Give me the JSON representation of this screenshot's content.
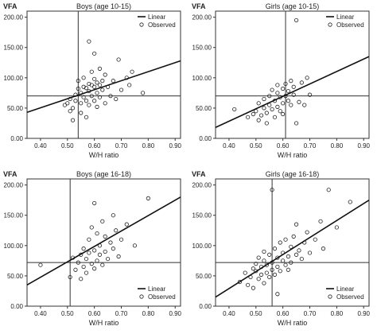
{
  "chart_data": [
    {
      "type": "scatter",
      "title": "Boys (age 10-15)",
      "ylabel": "VFA",
      "xlabel": "W/H ratio",
      "xlim": [
        0.35,
        0.92
      ],
      "ylim": [
        0,
        210
      ],
      "x_ticks": [
        "0.40",
        "0.50",
        "0.60",
        "0.70",
        "0.80",
        "0.90"
      ],
      "y_ticks": [
        "0.00",
        "50.00",
        "100.00",
        "150.00",
        "200.00"
      ],
      "legend": {
        "position": "top-right",
        "entries": [
          "Linear",
          "Observed"
        ]
      },
      "reference_lines": {
        "x": 0.54,
        "y": 70
      },
      "fit_line": {
        "x": [
          0.35,
          0.92
        ],
        "y": [
          43,
          128
        ]
      },
      "points": [
        {
          "x": 0.49,
          "y": 55
        },
        {
          "x": 0.5,
          "y": 58
        },
        {
          "x": 0.51,
          "y": 45
        },
        {
          "x": 0.51,
          "y": 65
        },
        {
          "x": 0.52,
          "y": 30
        },
        {
          "x": 0.52,
          "y": 50
        },
        {
          "x": 0.53,
          "y": 72
        },
        {
          "x": 0.53,
          "y": 62
        },
        {
          "x": 0.54,
          "y": 95
        },
        {
          "x": 0.54,
          "y": 82
        },
        {
          "x": 0.55,
          "y": 75
        },
        {
          "x": 0.55,
          "y": 58
        },
        {
          "x": 0.55,
          "y": 42
        },
        {
          "x": 0.56,
          "y": 85
        },
        {
          "x": 0.56,
          "y": 100
        },
        {
          "x": 0.56,
          "y": 68
        },
        {
          "x": 0.57,
          "y": 83
        },
        {
          "x": 0.57,
          "y": 62
        },
        {
          "x": 0.57,
          "y": 35
        },
        {
          "x": 0.58,
          "y": 160
        },
        {
          "x": 0.58,
          "y": 90
        },
        {
          "x": 0.58,
          "y": 78
        },
        {
          "x": 0.58,
          "y": 55
        },
        {
          "x": 0.59,
          "y": 110
        },
        {
          "x": 0.59,
          "y": 88
        },
        {
          "x": 0.59,
          "y": 70
        },
        {
          "x": 0.6,
          "y": 140
        },
        {
          "x": 0.6,
          "y": 98
        },
        {
          "x": 0.6,
          "y": 85
        },
        {
          "x": 0.6,
          "y": 62
        },
        {
          "x": 0.61,
          "y": 92
        },
        {
          "x": 0.61,
          "y": 75
        },
        {
          "x": 0.61,
          "y": 52
        },
        {
          "x": 0.62,
          "y": 88
        },
        {
          "x": 0.62,
          "y": 115
        },
        {
          "x": 0.62,
          "y": 68
        },
        {
          "x": 0.63,
          "y": 95
        },
        {
          "x": 0.63,
          "y": 80
        },
        {
          "x": 0.64,
          "y": 105
        },
        {
          "x": 0.64,
          "y": 58
        },
        {
          "x": 0.65,
          "y": 85
        },
        {
          "x": 0.66,
          "y": 70
        },
        {
          "x": 0.67,
          "y": 95
        },
        {
          "x": 0.68,
          "y": 65
        },
        {
          "x": 0.69,
          "y": 130
        },
        {
          "x": 0.7,
          "y": 80
        },
        {
          "x": 0.72,
          "y": 100
        },
        {
          "x": 0.73,
          "y": 88
        },
        {
          "x": 0.74,
          "y": 110
        },
        {
          "x": 0.78,
          "y": 75
        }
      ]
    },
    {
      "type": "scatter",
      "title": "Girls (age 10-15)",
      "ylabel": "VFA",
      "xlabel": "W/H ratio",
      "xlim": [
        0.35,
        0.92
      ],
      "ylim": [
        0,
        210
      ],
      "x_ticks": [
        "0.40",
        "0.50",
        "0.60",
        "0.70",
        "0.80",
        "0.90"
      ],
      "y_ticks": [
        "0.00",
        "50.00",
        "100.00",
        "150.00",
        "200.00"
      ],
      "legend": {
        "position": "top-right",
        "entries": [
          "Linear",
          "Observed"
        ]
      },
      "reference_lines": {
        "x": 0.61,
        "y": 70
      },
      "fit_line": {
        "x": [
          0.35,
          0.92
        ],
        "y": [
          18,
          135
        ]
      },
      "points": [
        {
          "x": 0.42,
          "y": 48
        },
        {
          "x": 0.47,
          "y": 35
        },
        {
          "x": 0.49,
          "y": 40
        },
        {
          "x": 0.5,
          "y": 45
        },
        {
          "x": 0.51,
          "y": 30
        },
        {
          "x": 0.51,
          "y": 58
        },
        {
          "x": 0.52,
          "y": 38
        },
        {
          "x": 0.53,
          "y": 50
        },
        {
          "x": 0.53,
          "y": 65
        },
        {
          "x": 0.54,
          "y": 42
        },
        {
          "x": 0.54,
          "y": 25
        },
        {
          "x": 0.55,
          "y": 55
        },
        {
          "x": 0.55,
          "y": 70
        },
        {
          "x": 0.56,
          "y": 48
        },
        {
          "x": 0.56,
          "y": 80
        },
        {
          "x": 0.57,
          "y": 35
        },
        {
          "x": 0.57,
          "y": 62
        },
        {
          "x": 0.58,
          "y": 52
        },
        {
          "x": 0.58,
          "y": 75
        },
        {
          "x": 0.58,
          "y": 88
        },
        {
          "x": 0.59,
          "y": 45
        },
        {
          "x": 0.59,
          "y": 68
        },
        {
          "x": 0.6,
          "y": 58
        },
        {
          "x": 0.6,
          "y": 82
        },
        {
          "x": 0.6,
          "y": 40
        },
        {
          "x": 0.61,
          "y": 90
        },
        {
          "x": 0.61,
          "y": 70
        },
        {
          "x": 0.62,
          "y": 62
        },
        {
          "x": 0.62,
          "y": 78
        },
        {
          "x": 0.63,
          "y": 55
        },
        {
          "x": 0.63,
          "y": 95
        },
        {
          "x": 0.64,
          "y": 72
        },
        {
          "x": 0.64,
          "y": 85
        },
        {
          "x": 0.65,
          "y": 25
        },
        {
          "x": 0.65,
          "y": 195
        },
        {
          "x": 0.66,
          "y": 60
        },
        {
          "x": 0.67,
          "y": 92
        },
        {
          "x": 0.68,
          "y": 55
        },
        {
          "x": 0.69,
          "y": 100
        },
        {
          "x": 0.7,
          "y": 72
        }
      ]
    },
    {
      "type": "scatter",
      "title": "Boys (age 16-18)",
      "ylabel": "VFA",
      "xlabel": "W/H ratio",
      "xlim": [
        0.35,
        0.92
      ],
      "ylim": [
        0,
        210
      ],
      "x_ticks": [
        "0.40",
        "0.50",
        "0.60",
        "0.70",
        "0.80",
        "0.90"
      ],
      "y_ticks": [
        "0.00",
        "50.00",
        "100.00",
        "150.00",
        "200.00"
      ],
      "legend": {
        "position": "bottom-right",
        "entries": [
          "Linear",
          "Observed"
        ]
      },
      "reference_lines": {
        "x": 0.51,
        "y": 72
      },
      "fit_line": {
        "x": [
          0.35,
          0.92
        ],
        "y": [
          35,
          180
        ]
      },
      "points": [
        {
          "x": 0.4,
          "y": 68
        },
        {
          "x": 0.51,
          "y": 48
        },
        {
          "x": 0.52,
          "y": 80
        },
        {
          "x": 0.53,
          "y": 60
        },
        {
          "x": 0.54,
          "y": 72
        },
        {
          "x": 0.55,
          "y": 45
        },
        {
          "x": 0.55,
          "y": 85
        },
        {
          "x": 0.56,
          "y": 65
        },
        {
          "x": 0.56,
          "y": 95
        },
        {
          "x": 0.57,
          "y": 78
        },
        {
          "x": 0.57,
          "y": 55
        },
        {
          "x": 0.58,
          "y": 88
        },
        {
          "x": 0.58,
          "y": 110
        },
        {
          "x": 0.59,
          "y": 70
        },
        {
          "x": 0.59,
          "y": 130
        },
        {
          "x": 0.6,
          "y": 170
        },
        {
          "x": 0.6,
          "y": 92
        },
        {
          "x": 0.6,
          "y": 62
        },
        {
          "x": 0.61,
          "y": 75
        },
        {
          "x": 0.61,
          "y": 120
        },
        {
          "x": 0.62,
          "y": 85
        },
        {
          "x": 0.62,
          "y": 100
        },
        {
          "x": 0.63,
          "y": 68
        },
        {
          "x": 0.63,
          "y": 140
        },
        {
          "x": 0.64,
          "y": 90
        },
        {
          "x": 0.64,
          "y": 115
        },
        {
          "x": 0.65,
          "y": 78
        },
        {
          "x": 0.66,
          "y": 105
        },
        {
          "x": 0.67,
          "y": 150
        },
        {
          "x": 0.67,
          "y": 95
        },
        {
          "x": 0.68,
          "y": 125
        },
        {
          "x": 0.69,
          "y": 82
        },
        {
          "x": 0.7,
          "y": 110
        },
        {
          "x": 0.72,
          "y": 135
        },
        {
          "x": 0.75,
          "y": 100
        },
        {
          "x": 0.8,
          "y": 178
        }
      ]
    },
    {
      "type": "scatter",
      "title": "Girls (age 16-18)",
      "ylabel": "VFA",
      "xlabel": "W/H ratio",
      "xlim": [
        0.35,
        0.92
      ],
      "ylim": [
        0,
        210
      ],
      "x_ticks": [
        "0.40",
        "0.50",
        "0.60",
        "0.70",
        "0.80",
        "0.90"
      ],
      "y_ticks": [
        "0.00",
        "50.00",
        "100.00",
        "150.00",
        "200.00"
      ],
      "legend": {
        "position": "bottom-right",
        "entries": [
          "Linear",
          "Observed"
        ]
      },
      "reference_lines": {
        "x": 0.56,
        "y": 72
      },
      "fit_line": {
        "x": [
          0.35,
          0.92
        ],
        "y": [
          15,
          175
        ]
      },
      "points": [
        {
          "x": 0.44,
          "y": 40
        },
        {
          "x": 0.46,
          "y": 55
        },
        {
          "x": 0.47,
          "y": 35
        },
        {
          "x": 0.48,
          "y": 48
        },
        {
          "x": 0.49,
          "y": 62
        },
        {
          "x": 0.49,
          "y": 30
        },
        {
          "x": 0.5,
          "y": 58
        },
        {
          "x": 0.5,
          "y": 70
        },
        {
          "x": 0.51,
          "y": 45
        },
        {
          "x": 0.51,
          "y": 80
        },
        {
          "x": 0.52,
          "y": 52
        },
        {
          "x": 0.52,
          "y": 65
        },
        {
          "x": 0.53,
          "y": 38
        },
        {
          "x": 0.53,
          "y": 75
        },
        {
          "x": 0.53,
          "y": 90
        },
        {
          "x": 0.54,
          "y": 55
        },
        {
          "x": 0.54,
          "y": 68
        },
        {
          "x": 0.55,
          "y": 48
        },
        {
          "x": 0.55,
          "y": 85
        },
        {
          "x": 0.56,
          "y": 60
        },
        {
          "x": 0.56,
          "y": 192
        },
        {
          "x": 0.56,
          "y": 72
        },
        {
          "x": 0.57,
          "y": 52
        },
        {
          "x": 0.57,
          "y": 95
        },
        {
          "x": 0.58,
          "y": 65
        },
        {
          "x": 0.58,
          "y": 20
        },
        {
          "x": 0.58,
          "y": 80
        },
        {
          "x": 0.59,
          "y": 105
        },
        {
          "x": 0.59,
          "y": 58
        },
        {
          "x": 0.6,
          "y": 75
        },
        {
          "x": 0.6,
          "y": 88
        },
        {
          "x": 0.61,
          "y": 68
        },
        {
          "x": 0.61,
          "y": 110
        },
        {
          "x": 0.62,
          "y": 82
        },
        {
          "x": 0.62,
          "y": 60
        },
        {
          "x": 0.63,
          "y": 98
        },
        {
          "x": 0.63,
          "y": 72
        },
        {
          "x": 0.64,
          "y": 115
        },
        {
          "x": 0.65,
          "y": 85
        },
        {
          "x": 0.65,
          "y": 135
        },
        {
          "x": 0.66,
          "y": 92
        },
        {
          "x": 0.67,
          "y": 78
        },
        {
          "x": 0.68,
          "y": 105
        },
        {
          "x": 0.69,
          "y": 122
        },
        {
          "x": 0.7,
          "y": 88
        },
        {
          "x": 0.72,
          "y": 110
        },
        {
          "x": 0.74,
          "y": 140
        },
        {
          "x": 0.75,
          "y": 95
        },
        {
          "x": 0.77,
          "y": 192
        },
        {
          "x": 0.8,
          "y": 130
        },
        {
          "x": 0.85,
          "y": 172
        }
      ]
    }
  ]
}
